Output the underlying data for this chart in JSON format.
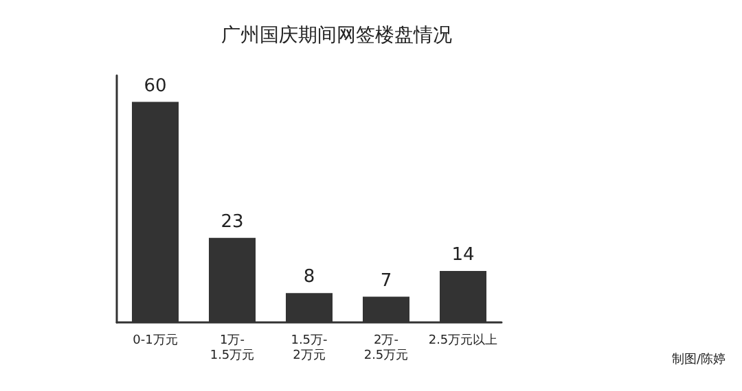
{
  "chart_data": {
    "type": "bar",
    "title": "广州国庆期间网签楼盘情况",
    "categories": [
      "0-1万元",
      "1万-1.5万元",
      "1.5万-2万元",
      "2万-2.5万元",
      "2.5万元以上"
    ],
    "values": [
      60,
      23,
      8,
      7,
      14
    ],
    "color": "#333333",
    "data_labels": true,
    "annotations": [
      "制图/陈婷"
    ]
  }
}
